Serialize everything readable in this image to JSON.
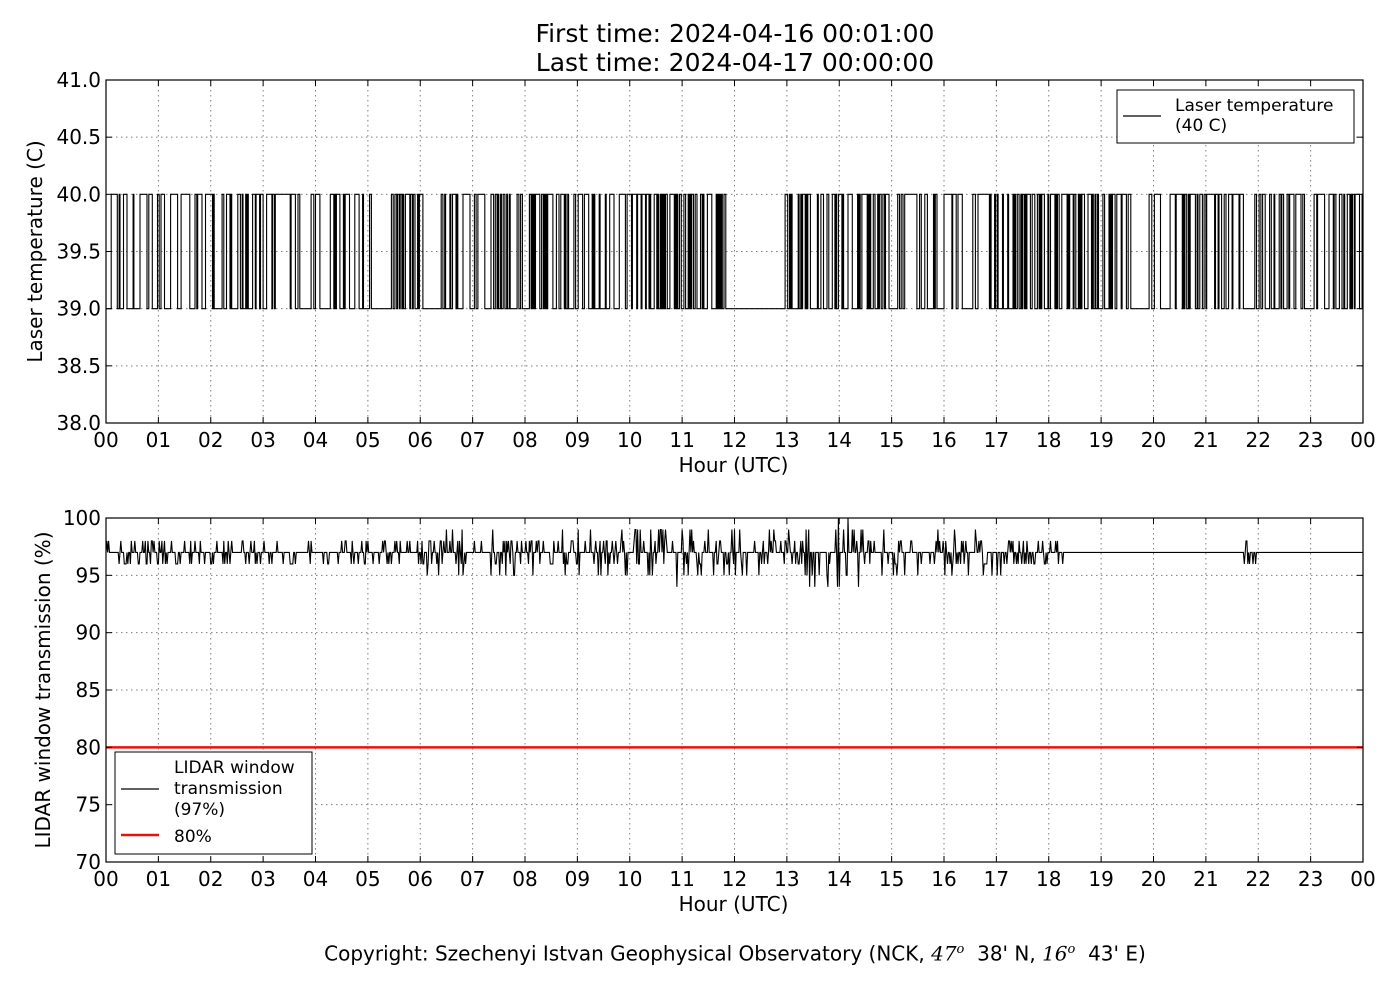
{
  "header": {
    "first_time": "First time: 2024-04-16 00:01:00",
    "last_time": "Last time: 2024-04-17 00:00:00"
  },
  "footer": {
    "copyright_prefix": "Copyright: Szechenyi Istvan Geophysical Observatory (NCK, ",
    "lat_deg": "47",
    "lat_min": "38' N, ",
    "lon_deg": "16",
    "lon_min": "43' E)",
    "degree_symbol": "o"
  },
  "colors": {
    "series": "#000000",
    "threshold": "#e8140c",
    "grid": "#7f7f7f"
  },
  "chart_data": [
    {
      "type": "line",
      "ylabel": "Laser temperature (C)",
      "xlabel": "Hour (UTC)",
      "xlim": [
        0,
        24
      ],
      "ylim": [
        38.0,
        41.0
      ],
      "yticks": [
        38.0,
        38.5,
        39.0,
        39.5,
        40.0,
        40.5,
        41.0
      ],
      "ytick_labels": [
        "38.0",
        "38.5",
        "39.0",
        "39.5",
        "40.0",
        "40.5",
        "41.0"
      ],
      "xtick_labels": [
        "00",
        "01",
        "02",
        "03",
        "04",
        "05",
        "06",
        "07",
        "08",
        "09",
        "10",
        "11",
        "12",
        "13",
        "14",
        "15",
        "16",
        "17",
        "18",
        "19",
        "20",
        "21",
        "22",
        "23",
        "00"
      ],
      "grid": true,
      "legend_position": "upper-right",
      "series": [
        {
          "name": "Laser temperature\n(40 C)",
          "color": "#000000",
          "low": 39.0,
          "high": 40.0,
          "switch_density": [
            0.3,
            0.25,
            0.35,
            0.3,
            0.3,
            0.5,
            0.3,
            0.4,
            0.4,
            0.3,
            0.6,
            0.55,
            0.02,
            0.35,
            0.35,
            0.3,
            0.3,
            0.45,
            0.45,
            0.3,
            0.2,
            0.25,
            0.35,
            0.4
          ],
          "flat_intervals": [
            [
              11.82,
              12.55
            ],
            [
              4.08,
              4.2
            ],
            [
              5.05,
              5.3
            ],
            [
              6.05,
              6.35
            ],
            [
              19.6,
              19.9
            ]
          ]
        }
      ]
    },
    {
      "type": "line",
      "ylabel": "LIDAR window transmission (%)",
      "xlabel": "Hour (UTC)",
      "xlim": [
        0,
        24
      ],
      "ylim": [
        70,
        100
      ],
      "yticks": [
        70,
        75,
        80,
        85,
        90,
        95,
        100
      ],
      "ytick_labels": [
        "70",
        "75",
        "80",
        "85",
        "90",
        "95",
        "100"
      ],
      "xtick_labels": [
        "00",
        "01",
        "02",
        "03",
        "04",
        "05",
        "06",
        "07",
        "08",
        "09",
        "10",
        "11",
        "12",
        "13",
        "14",
        "15",
        "16",
        "17",
        "18",
        "19",
        "20",
        "21",
        "22",
        "23",
        "00"
      ],
      "grid": true,
      "legend_position": "lower-left",
      "series": [
        {
          "name": "LIDAR window\ntransmission\n(97%)",
          "color": "#000000",
          "baseline": 97,
          "start_value": 98,
          "noise_segments": [
            {
              "from": 0.0,
              "to": 3.9,
              "amp": 1.0
            },
            {
              "from": 3.9,
              "to": 5.6,
              "amp": 1.2
            },
            {
              "from": 5.6,
              "to": 9.8,
              "amp": 1.8
            },
            {
              "from": 9.8,
              "to": 13.0,
              "amp": 2.6
            },
            {
              "from": 13.0,
              "to": 15.0,
              "amp": 3.0
            },
            {
              "from": 15.0,
              "to": 17.2,
              "amp": 1.8
            },
            {
              "from": 17.2,
              "to": 18.3,
              "amp": 1.0
            },
            {
              "from": 21.7,
              "to": 22.0,
              "amp": 1.0
            }
          ]
        },
        {
          "name": "80%",
          "color": "#e8140c",
          "values": [
            80,
            80
          ],
          "x": [
            0,
            24
          ]
        }
      ]
    }
  ]
}
